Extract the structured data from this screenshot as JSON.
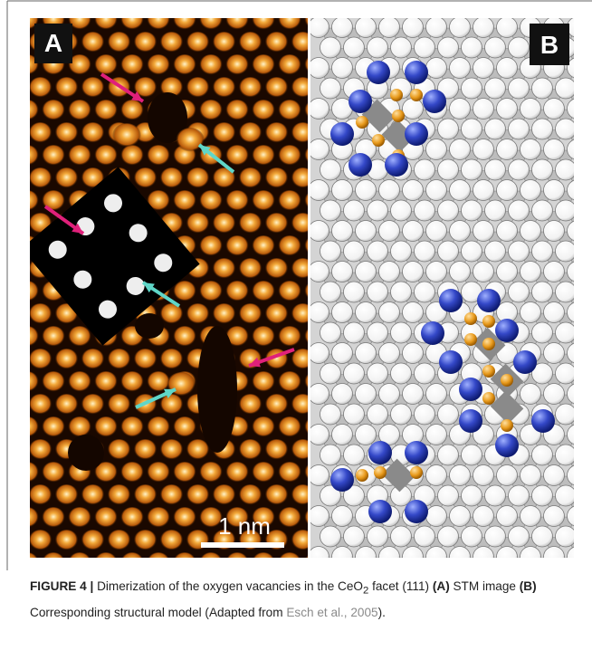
{
  "figure": {
    "panel_a_label": "A",
    "panel_b_label": "B",
    "scale_bar": "1 nm"
  },
  "caption": {
    "label": "FIGURE 4 |",
    "text_1": "Dimerization of the oxygen vacancies in the CeO",
    "subscript": "2",
    "text_2": " facet (111) ",
    "a_ref": "(A)",
    "text_3": " STM image ",
    "b_ref": "(B)",
    "text_4": " Corresponding structural model (Adapted from ",
    "citation": "Esch et al., 2005",
    "text_5": ")."
  }
}
